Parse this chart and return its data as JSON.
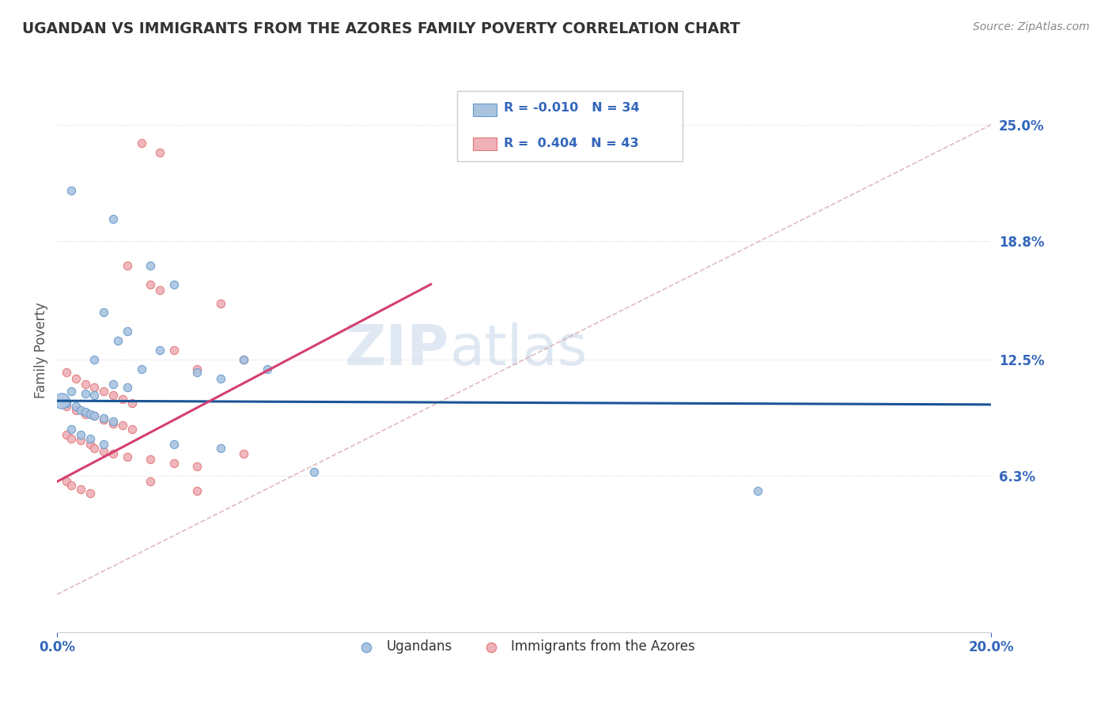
{
  "title": "UGANDAN VS IMMIGRANTS FROM THE AZORES FAMILY POVERTY CORRELATION CHART",
  "source": "Source: ZipAtlas.com",
  "ylabel": "Family Poverty",
  "ytick_labels": [
    "25.0%",
    "18.8%",
    "12.5%",
    "6.3%"
  ],
  "ytick_values": [
    0.25,
    0.188,
    0.125,
    0.063
  ],
  "xlim": [
    0.0,
    0.2
  ],
  "ylim": [
    -0.02,
    0.28
  ],
  "blue_line_x": [
    0.0,
    0.2
  ],
  "blue_line_y": [
    0.103,
    0.101
  ],
  "pink_line_x": [
    0.0,
    0.08
  ],
  "pink_line_y": [
    0.06,
    0.165
  ],
  "dash_line_x": [
    0.0,
    0.2
  ],
  "dash_line_y": [
    0.0,
    0.25
  ],
  "blue_scatter": [
    [
      0.003,
      0.215
    ],
    [
      0.012,
      0.2
    ],
    [
      0.02,
      0.175
    ],
    [
      0.025,
      0.165
    ],
    [
      0.01,
      0.15
    ],
    [
      0.015,
      0.14
    ],
    [
      0.013,
      0.135
    ],
    [
      0.022,
      0.13
    ],
    [
      0.008,
      0.125
    ],
    [
      0.018,
      0.12
    ],
    [
      0.03,
      0.118
    ],
    [
      0.035,
      0.115
    ],
    [
      0.012,
      0.112
    ],
    [
      0.015,
      0.11
    ],
    [
      0.003,
      0.108
    ],
    [
      0.006,
      0.107
    ],
    [
      0.008,
      0.106
    ],
    [
      0.04,
      0.125
    ],
    [
      0.045,
      0.12
    ],
    [
      0.002,
      0.102
    ],
    [
      0.004,
      0.1
    ],
    [
      0.005,
      0.098
    ],
    [
      0.006,
      0.097
    ],
    [
      0.007,
      0.096
    ],
    [
      0.008,
      0.095
    ],
    [
      0.01,
      0.094
    ],
    [
      0.012,
      0.092
    ],
    [
      0.003,
      0.088
    ],
    [
      0.005,
      0.085
    ],
    [
      0.007,
      0.083
    ],
    [
      0.01,
      0.08
    ],
    [
      0.025,
      0.08
    ],
    [
      0.035,
      0.078
    ],
    [
      0.055,
      0.065
    ],
    [
      0.15,
      0.055
    ]
  ],
  "pink_scatter": [
    [
      0.018,
      0.24
    ],
    [
      0.022,
      0.235
    ],
    [
      0.015,
      0.175
    ],
    [
      0.02,
      0.165
    ],
    [
      0.022,
      0.162
    ],
    [
      0.035,
      0.155
    ],
    [
      0.002,
      0.118
    ],
    [
      0.004,
      0.115
    ],
    [
      0.006,
      0.112
    ],
    [
      0.008,
      0.11
    ],
    [
      0.01,
      0.108
    ],
    [
      0.012,
      0.106
    ],
    [
      0.014,
      0.104
    ],
    [
      0.016,
      0.102
    ],
    [
      0.025,
      0.13
    ],
    [
      0.03,
      0.12
    ],
    [
      0.04,
      0.125
    ],
    [
      0.002,
      0.1
    ],
    [
      0.004,
      0.098
    ],
    [
      0.006,
      0.096
    ],
    [
      0.008,
      0.095
    ],
    [
      0.01,
      0.093
    ],
    [
      0.012,
      0.091
    ],
    [
      0.014,
      0.09
    ],
    [
      0.016,
      0.088
    ],
    [
      0.002,
      0.085
    ],
    [
      0.003,
      0.083
    ],
    [
      0.005,
      0.082
    ],
    [
      0.007,
      0.08
    ],
    [
      0.008,
      0.078
    ],
    [
      0.01,
      0.076
    ],
    [
      0.012,
      0.075
    ],
    [
      0.015,
      0.073
    ],
    [
      0.02,
      0.072
    ],
    [
      0.025,
      0.07
    ],
    [
      0.03,
      0.068
    ],
    [
      0.002,
      0.06
    ],
    [
      0.003,
      0.058
    ],
    [
      0.005,
      0.056
    ],
    [
      0.007,
      0.054
    ],
    [
      0.04,
      0.075
    ],
    [
      0.03,
      0.055
    ],
    [
      0.02,
      0.06
    ]
  ],
  "blue_color": "#aac4e0",
  "pink_color": "#f0b0b8",
  "blue_edge": "#6699cc",
  "pink_edge": "#e07878",
  "blue_line_color": "#1a5496",
  "pink_line_color": "#d44070",
  "dash_color": "#c8c8c8",
  "watermark_color": "#ccd8ea",
  "grid_color": "#d8d8d8",
  "tick_color": "#3366bb",
  "title_color": "#333333",
  "source_color": "#888888",
  "ylabel_color": "#555555"
}
